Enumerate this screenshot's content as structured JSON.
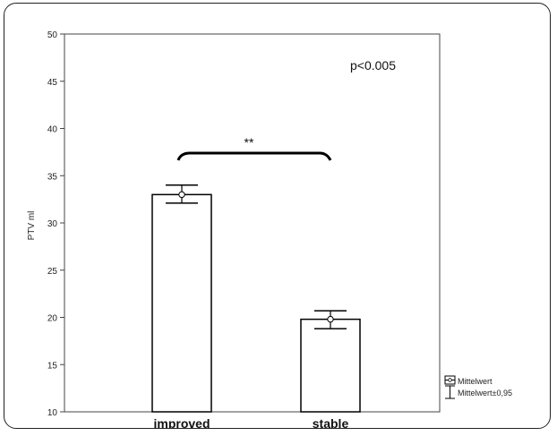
{
  "chart_data": {
    "type": "bar",
    "categories": [
      "improved",
      "stable"
    ],
    "values": [
      33,
      19.8
    ],
    "error_lower": [
      32.1,
      18.8
    ],
    "error_upper": [
      34,
      20.7
    ],
    "ylabel": "PTV ml",
    "ylim": [
      10,
      50
    ],
    "yticks": [
      10,
      15,
      20,
      25,
      30,
      35,
      40,
      45,
      50
    ],
    "annotation": "p<0.005",
    "significance": "**",
    "legend": [
      "Mittelwert",
      "Mittelwert±0,95"
    ],
    "legend_position": "bottom-right",
    "grid": false
  },
  "colors": {
    "bar_fill": "#ffffff",
    "stroke": "#000000"
  }
}
